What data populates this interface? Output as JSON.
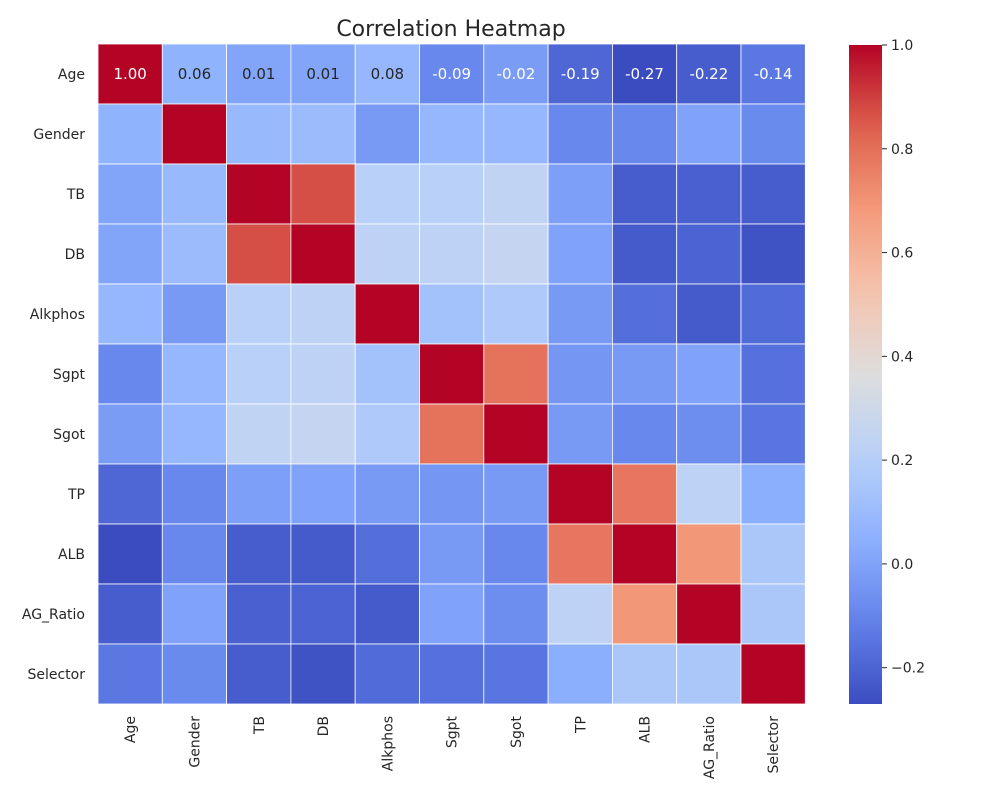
{
  "chart_data": {
    "type": "heatmap",
    "title": "Correlation Heatmap",
    "xlabel": "",
    "ylabel": "",
    "colormap": "coolwarm",
    "labels": [
      "Age",
      "Gender",
      "TB",
      "DB",
      "Alkphos",
      "Sgpt",
      "Sgot",
      "TP",
      "ALB",
      "AG_Ratio",
      "Selector"
    ],
    "matrix": [
      [
        1.0,
        0.06,
        0.01,
        0.01,
        0.08,
        -0.09,
        -0.02,
        -0.19,
        -0.27,
        -0.22,
        -0.14
      ],
      [
        0.06,
        1.0,
        0.09,
        0.1,
        -0.03,
        0.08,
        0.08,
        -0.09,
        -0.09,
        -0.0,
        -0.08
      ],
      [
        0.01,
        0.09,
        1.0,
        0.87,
        0.21,
        0.21,
        0.24,
        -0.01,
        -0.22,
        -0.21,
        -0.22
      ],
      [
        0.01,
        0.1,
        0.87,
        1.0,
        0.23,
        0.23,
        0.26,
        -0.0,
        -0.23,
        -0.2,
        -0.25
      ],
      [
        0.08,
        -0.03,
        0.21,
        0.23,
        1.0,
        0.13,
        0.17,
        -0.03,
        -0.17,
        -0.23,
        -0.18
      ],
      [
        -0.09,
        0.08,
        0.21,
        0.23,
        0.13,
        1.0,
        0.79,
        -0.04,
        -0.03,
        -0.0,
        -0.16
      ],
      [
        -0.02,
        0.08,
        0.24,
        0.26,
        0.17,
        0.79,
        1.0,
        -0.03,
        -0.09,
        -0.07,
        -0.15
      ],
      [
        -0.19,
        -0.09,
        -0.01,
        -0.0,
        -0.03,
        -0.04,
        -0.03,
        1.0,
        0.78,
        0.23,
        0.04
      ],
      [
        -0.27,
        -0.09,
        -0.22,
        -0.23,
        -0.17,
        -0.03,
        -0.09,
        0.78,
        1.0,
        0.69,
        0.16
      ],
      [
        -0.22,
        -0.0,
        -0.21,
        -0.2,
        -0.23,
        -0.0,
        -0.07,
        0.23,
        0.69,
        1.0,
        0.16
      ],
      [
        -0.14,
        -0.08,
        -0.22,
        -0.25,
        -0.18,
        -0.16,
        -0.15,
        0.04,
        0.16,
        0.16,
        1.0
      ]
    ],
    "annotated_row": 0,
    "annotations": [
      "1.00",
      "0.06",
      "0.01",
      "0.01",
      "0.08",
      "-0.09",
      "-0.02",
      "-0.19",
      "-0.27",
      "-0.22",
      "-0.14"
    ],
    "colorbar": {
      "vmin": -0.27,
      "vmax": 1.0,
      "ticks": [
        1.0,
        0.8,
        0.6,
        0.4,
        0.2,
        0.0,
        -0.2
      ],
      "tick_labels": [
        "1.0",
        "0.8",
        "0.6",
        "0.4",
        "0.2",
        "0.0",
        "−0.2"
      ]
    }
  }
}
